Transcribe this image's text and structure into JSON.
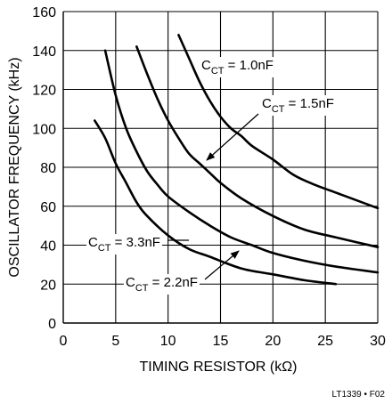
{
  "chart_data": {
    "type": "line",
    "title": "",
    "xlabel": "TIMING RESISTOR (kΩ)",
    "ylabel": "OSCILLATOR FREQUENCY (kHz)",
    "xlim": [
      0,
      30
    ],
    "ylim": [
      0,
      160
    ],
    "x_ticks": [
      0,
      5,
      10,
      15,
      20,
      25,
      30
    ],
    "y_ticks": [
      0,
      20,
      40,
      60,
      80,
      100,
      120,
      140,
      160
    ],
    "grid": true,
    "series": [
      {
        "name": "1.0nF",
        "label_prefix": "C",
        "label_sub": "CT",
        "label_rest": " = 1.0nF",
        "points": [
          [
            11,
            148
          ],
          [
            12,
            136
          ],
          [
            13,
            124
          ],
          [
            14,
            114
          ],
          [
            15,
            106
          ],
          [
            16,
            100
          ],
          [
            17,
            96
          ],
          [
            18,
            91
          ],
          [
            20,
            84
          ],
          [
            22,
            76
          ],
          [
            24,
            71
          ],
          [
            26,
            67
          ],
          [
            28,
            63
          ],
          [
            30,
            59
          ]
        ]
      },
      {
        "name": "1.5nF",
        "label_prefix": "C",
        "label_sub": "CT",
        "label_rest": " = 1.5nF",
        "points": [
          [
            7,
            142
          ],
          [
            8,
            128
          ],
          [
            9,
            115
          ],
          [
            10,
            104
          ],
          [
            11,
            95
          ],
          [
            12,
            87
          ],
          [
            13,
            82
          ],
          [
            14,
            77
          ],
          [
            15,
            72
          ],
          [
            17,
            64
          ],
          [
            20,
            55
          ],
          [
            23,
            48
          ],
          [
            26,
            44
          ],
          [
            30,
            39
          ]
        ]
      },
      {
        "name": "2.2nF",
        "label_prefix": "C",
        "label_sub": "CT",
        "label_rest": " = 2.2nF",
        "points": [
          [
            4,
            140
          ],
          [
            5,
            117
          ],
          [
            6,
            100
          ],
          [
            7,
            88
          ],
          [
            8,
            78
          ],
          [
            9,
            71
          ],
          [
            10,
            65
          ],
          [
            12,
            57
          ],
          [
            14,
            50
          ],
          [
            16,
            44
          ],
          [
            18,
            40
          ],
          [
            20,
            36
          ],
          [
            23,
            32
          ],
          [
            26,
            29
          ],
          [
            30,
            26
          ]
        ]
      },
      {
        "name": "3.3nF",
        "label_prefix": "C",
        "label_sub": "CT",
        "label_rest": " = 3.3nF",
        "points": [
          [
            3,
            104
          ],
          [
            4,
            95
          ],
          [
            5,
            82
          ],
          [
            6,
            72
          ],
          [
            7,
            62
          ],
          [
            8,
            55
          ],
          [
            10,
            45
          ],
          [
            12,
            38
          ],
          [
            14,
            34
          ],
          [
            17,
            28
          ],
          [
            20,
            25
          ],
          [
            23,
            22
          ],
          [
            26,
            20
          ]
        ]
      }
    ]
  },
  "figure_code": "LT1339 • F02"
}
